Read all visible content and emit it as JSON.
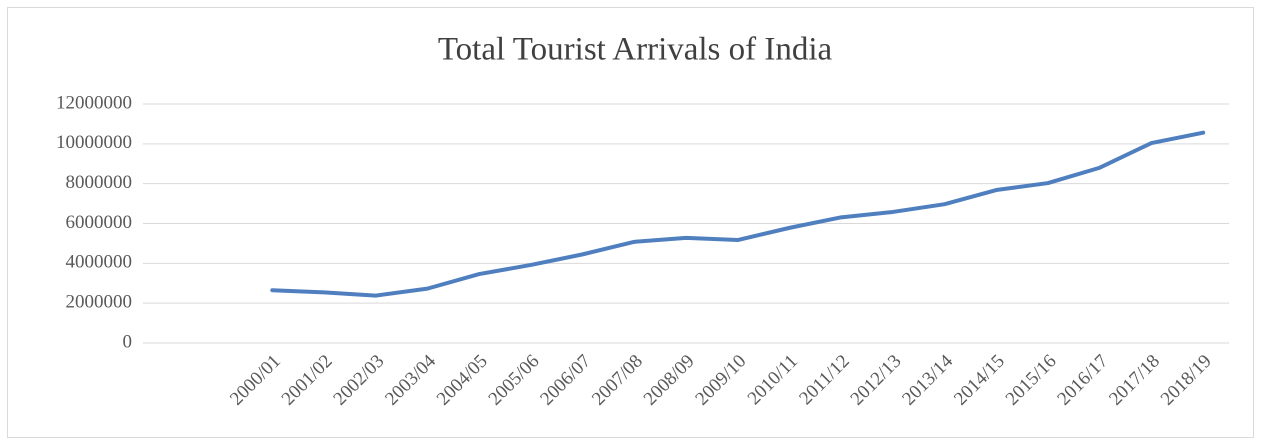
{
  "chart_data": {
    "type": "line",
    "title": "Total Tourist Arrivals of India",
    "categories": [
      null,
      null,
      "2000/01",
      "2001/02",
      "2002/03",
      "2003/04",
      "2004/05",
      "2005/06",
      "2006/07",
      "2007/08",
      "2008/09",
      "2009/10",
      "2010/11",
      "2011/12",
      "2012/13",
      "2013/14",
      "2014/15",
      "2015/16",
      "2016/17",
      "2017/18",
      "2018/19"
    ],
    "values": [
      null,
      null,
      2650000,
      2540000,
      2380000,
      2730000,
      3460000,
      3920000,
      4450000,
      5080000,
      5280000,
      5170000,
      5780000,
      6310000,
      6580000,
      6970000,
      7680000,
      8030000,
      8800000,
      10040000,
      10560000
    ],
    "color": "#4f7fbf",
    "ylim": [
      0,
      12000000
    ],
    "yticks": [
      0,
      2000000,
      4000000,
      6000000,
      8000000,
      10000000,
      12000000
    ],
    "grid": true
  }
}
